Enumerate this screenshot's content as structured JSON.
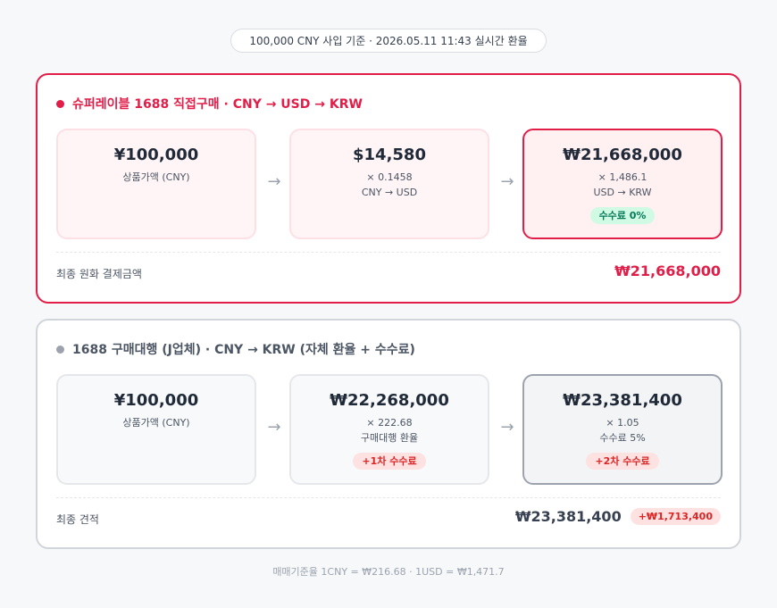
{
  "header": {
    "summary": "100,000 CNY 사입 기준 · 2026.05.11 11:43 실시간 환율"
  },
  "super_card": {
    "title": "슈퍼레이블 1688 직접구매 · CNY → USD → KRW",
    "step1": {
      "amount": "¥100,000",
      "sub": "상품가액 (CNY)"
    },
    "step2": {
      "amount": "$14,580",
      "rate": "× 0.1458",
      "pair": "CNY → USD"
    },
    "step3": {
      "amount": "₩21,668,000",
      "rate": "× 1,486.1",
      "pair": "USD → KRW",
      "badge": "수수료 0%"
    },
    "arrow": "→",
    "footer_label": "최종 원화 결제금액",
    "footer_total": "₩21,668,000"
  },
  "agency_card": {
    "title": "1688 구매대행 (J업체) · CNY → KRW (자체 환율 + 수수료)",
    "step1": {
      "amount": "¥100,000",
      "sub": "상품가액 (CNY)"
    },
    "step2": {
      "amount": "₩22,268,000",
      "rate": "× 222.68",
      "label": "구매대행 환율",
      "badge": "+1차 수수료"
    },
    "step3": {
      "amount": "₩23,381,400",
      "rate": "× 1.05",
      "label": "수수료 5%",
      "badge": "+2차 수수료"
    },
    "arrow": "→",
    "footer_label": "최종 견적",
    "footer_total": "₩23,381,400",
    "footer_diff": "+₩1,713,400"
  },
  "rate_note": "매매기준율 1CNY = ₩216.68 · 1USD = ₩1,471.7",
  "colors": {
    "accent": "#e11d48",
    "neutral": "#9ca3af",
    "success_badge": "#047857",
    "danger_badge": "#dc2626"
  }
}
